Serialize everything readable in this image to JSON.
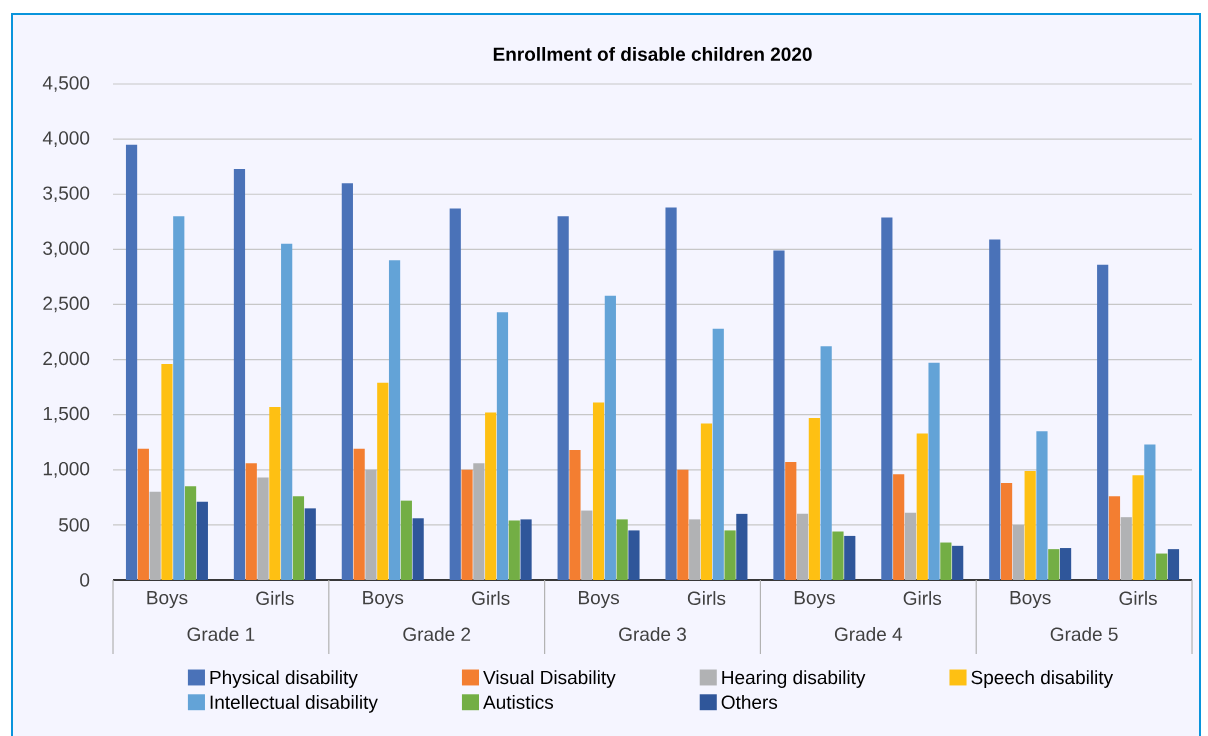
{
  "chart_data": {
    "type": "bar",
    "title": "Enrollment of disable children 2020",
    "categories": [
      "Boys",
      "Girls",
      "Boys",
      "Girls",
      "Boys",
      "Girls",
      "Boys",
      "Girls",
      "Boys",
      "Girls"
    ],
    "annotations": [
      "Grade 1",
      "Grade 2",
      "Grade 3",
      "Grade 4",
      "Grade 5"
    ],
    "series": [
      {
        "name": "Physical disability",
        "color": "#4a72b8",
        "values": [
          3950,
          3730,
          3600,
          3370,
          3300,
          3380,
          2990,
          3290,
          3090,
          2860
        ]
      },
      {
        "name": "Visual Disability",
        "color": "#f37e31",
        "values": [
          1190,
          1060,
          1190,
          1000,
          1180,
          1000,
          1070,
          960,
          880,
          760
        ]
      },
      {
        "name": "Hearing disability",
        "color": "#b1b2b4",
        "values": [
          800,
          930,
          1000,
          1060,
          630,
          550,
          600,
          610,
          500,
          570
        ]
      },
      {
        "name": "Speech disability",
        "color": "#fec013",
        "values": [
          1960,
          1570,
          1790,
          1520,
          1610,
          1420,
          1470,
          1330,
          990,
          950
        ]
      },
      {
        "name": "Intellectual disability",
        "color": "#63a3d7",
        "values": [
          3300,
          3050,
          2900,
          2430,
          2580,
          2280,
          2120,
          1970,
          1350,
          1230
        ]
      },
      {
        "name": "Autistics",
        "color": "#73ae45",
        "values": [
          850,
          760,
          720,
          540,
          550,
          450,
          440,
          340,
          280,
          240
        ]
      },
      {
        "name": "Others",
        "color": "#2f569a",
        "values": [
          710,
          650,
          560,
          550,
          450,
          600,
          400,
          310,
          290,
          280
        ]
      }
    ],
    "ylim": [
      0,
      4500
    ],
    "yticks": [
      {
        "value": 0,
        "label": "0"
      },
      {
        "value": 500,
        "label": "500"
      },
      {
        "value": 1000,
        "label": "1,000"
      },
      {
        "value": 1500,
        "label": "1,500"
      },
      {
        "value": 2000,
        "label": "2,000"
      },
      {
        "value": 2500,
        "label": "2,500"
      },
      {
        "value": 3000,
        "label": "3,000"
      },
      {
        "value": 3500,
        "label": "3,500"
      },
      {
        "value": 4000,
        "label": "4,000"
      },
      {
        "value": 4500,
        "label": "4,500"
      }
    ],
    "grid": "y",
    "legend": "bottom"
  }
}
